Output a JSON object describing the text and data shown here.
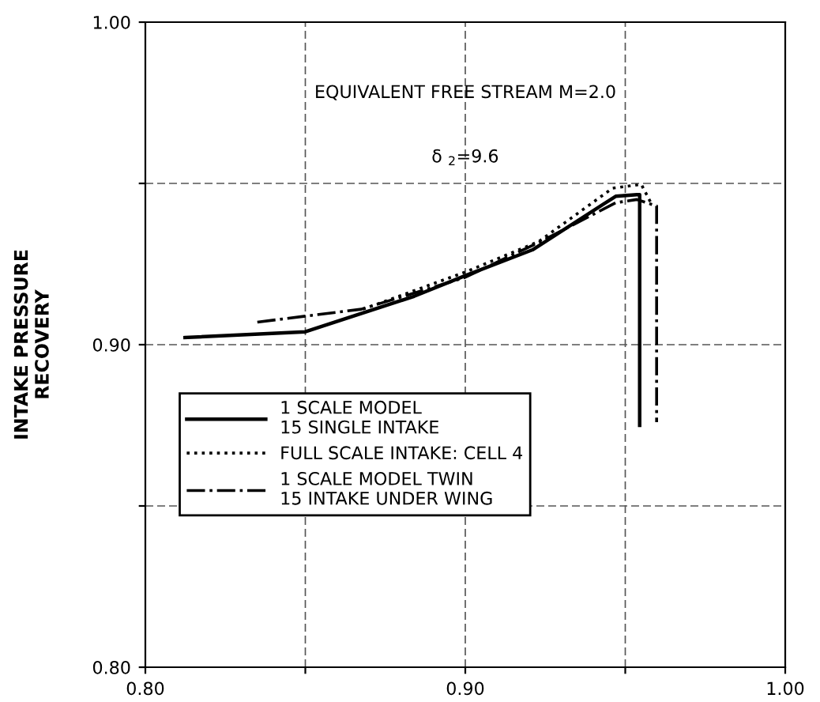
{
  "chart_data": {
    "type": "line",
    "ylabel": "INTAKE PRESSURE\nRECOVERY",
    "annotations": [
      "EQUIVALENT FREE STREAM M=2.0",
      "δ $_{2}$=9.6"
    ],
    "xlim": [
      0.8,
      1.0
    ],
    "xticks": [
      {
        "value": 0.8,
        "label": "0.80"
      },
      {
        "value": 0.85,
        "label": null
      },
      {
        "value": 0.9,
        "label": "0.90"
      },
      {
        "value": 0.95,
        "label": null
      },
      {
        "value": 1.0,
        "label": "1.00"
      }
    ],
    "ylim": [
      0.8,
      1.0
    ],
    "yticks": [
      {
        "value": 0.8,
        "label": "0.80"
      },
      {
        "value": 0.85,
        "label": null
      },
      {
        "value": 0.9,
        "label": "0.90"
      },
      {
        "value": 0.95,
        "label": null
      },
      {
        "value": 1.0,
        "label": "1.00"
      }
    ],
    "grid": true,
    "legend": "center left",
    "series": [
      {
        "name": "1 SCALE MODEL\n15 SINGLE INTAKE",
        "color": "#000000",
        "line_style": "solid",
        "x": [
          0.8124,
          0.85,
          0.884,
          0.9005,
          0.921,
          0.947,
          0.9536,
          0.9545,
          0.9545
        ],
        "values": [
          0.9022,
          0.904,
          0.915,
          0.9216,
          0.9294,
          0.946,
          0.9465,
          0.9465,
          0.875
        ]
      },
      {
        "name": "FULL SCALE INTAKE: CELL 4",
        "color": "#000000",
        "line_style": "dotted",
        "x": [
          0.868,
          0.9,
          0.923,
          0.946,
          0.955,
          0.958
        ],
        "values": [
          0.911,
          0.9225,
          0.932,
          0.9485,
          0.9497,
          0.944
        ]
      },
      {
        "name": "1 SCALE MODEL TWIN\n15 INTAKE UNDER WING",
        "color": "#000000",
        "line_style": "dashdot",
        "x": [
          0.835,
          0.8675,
          0.8995,
          0.9234,
          0.947,
          0.9536,
          0.9598,
          0.9598
        ],
        "values": [
          0.907,
          0.911,
          0.9207,
          0.9319,
          0.944,
          0.945,
          0.943,
          0.876
        ]
      }
    ]
  }
}
